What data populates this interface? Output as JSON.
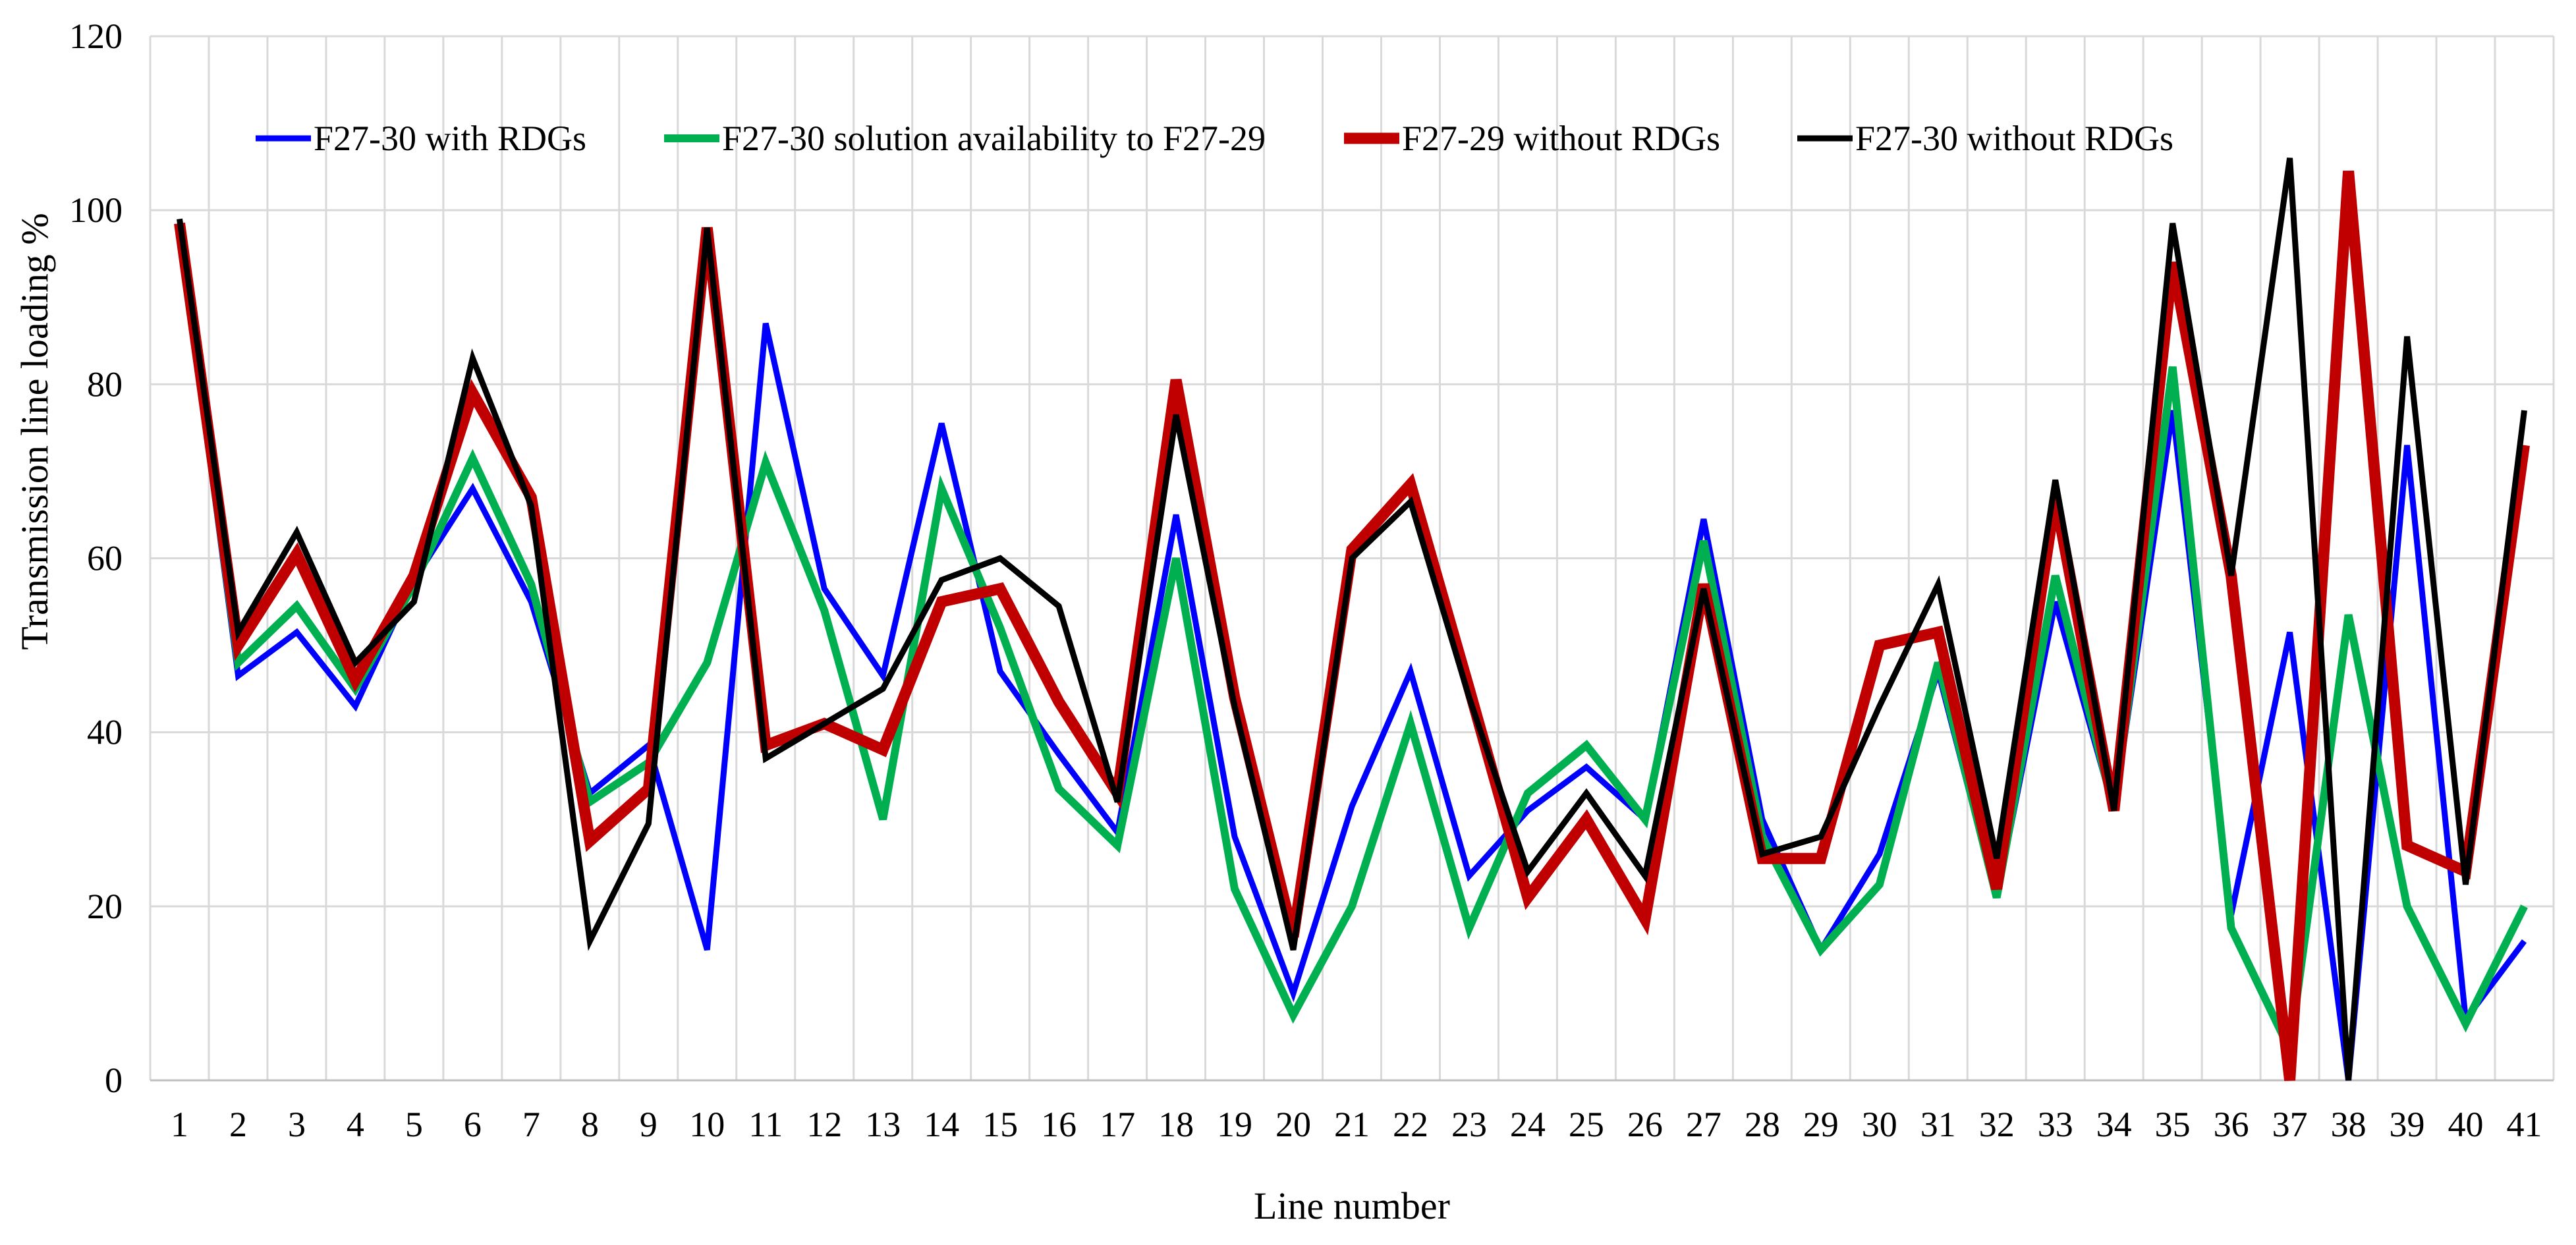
{
  "chart_data": {
    "type": "line",
    "title": "",
    "xlabel": "Line number",
    "ylabel": "Transmission  line loading %",
    "ylim": [
      0,
      120
    ],
    "yticks": [
      0,
      20,
      40,
      60,
      80,
      100,
      120
    ],
    "grid": true,
    "legend_position": "top",
    "x": [
      1,
      2,
      3,
      4,
      5,
      6,
      7,
      8,
      9,
      10,
      11,
      12,
      13,
      14,
      15,
      16,
      17,
      18,
      19,
      20,
      21,
      22,
      23,
      24,
      25,
      26,
      27,
      28,
      29,
      30,
      31,
      32,
      33,
      34,
      35,
      36,
      37,
      38,
      39,
      40,
      41
    ],
    "series": [
      {
        "name": "F27-30 with RDGs",
        "color": "#0000ff",
        "values": [
          98,
          46.5,
          51.5,
          43,
          57.5,
          68,
          55,
          33,
          38.5,
          15,
          87,
          56.5,
          46.5,
          75.5,
          47,
          37.5,
          28.5,
          65,
          28,
          10,
          31.5,
          47,
          23.5,
          31,
          36,
          30,
          64.5,
          30,
          15,
          26,
          47,
          21,
          55,
          31,
          77,
          19,
          51.5,
          0,
          73,
          7,
          16
        ]
      },
      {
        "name": "F27-30 solution availability to F27-29",
        "color": "#00b050",
        "values": [
          98,
          48,
          54.5,
          45,
          57,
          71.5,
          57,
          32,
          36.5,
          48,
          71,
          54,
          30,
          68,
          52,
          33.5,
          27,
          60,
          22,
          7.5,
          20,
          41,
          17.5,
          33,
          38.5,
          30,
          62,
          28,
          15,
          22.5,
          48,
          21,
          58,
          31,
          82,
          17.5,
          3.5,
          53.5,
          20,
          6.5,
          20
        ]
      },
      {
        "name": "F27-29 without RDGs",
        "color": "#c00000",
        "values": [
          98.5,
          50,
          60.5,
          46,
          58,
          79,
          67,
          27.5,
          33.5,
          98,
          38.5,
          41,
          38,
          55,
          56.5,
          43.5,
          33,
          80.5,
          44,
          16.5,
          61,
          68.5,
          45,
          21,
          30,
          18.5,
          57,
          25.5,
          25.5,
          50,
          51.5,
          22,
          67,
          31,
          94,
          58,
          0,
          104.5,
          27,
          24,
          73
        ]
      },
      {
        "name": "F27-30 without RDGs",
        "color": "#000000",
        "values": [
          99,
          51.5,
          63,
          48,
          55,
          83,
          66,
          16,
          29.5,
          98,
          37,
          41,
          45,
          57.5,
          60,
          54.5,
          32,
          76.5,
          43,
          15,
          60,
          66.5,
          44,
          24,
          33,
          23.5,
          56.5,
          26,
          28,
          43,
          57,
          25.5,
          69,
          31,
          98.5,
          58,
          106,
          0,
          85.5,
          22.5,
          77
        ]
      }
    ]
  }
}
